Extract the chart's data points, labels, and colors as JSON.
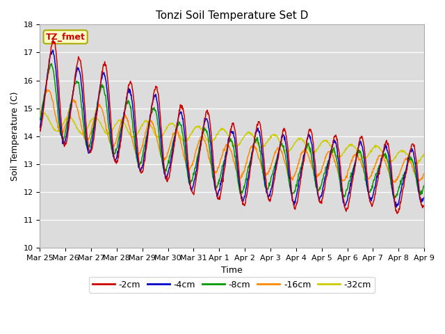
{
  "title": "Tonzi Soil Temperature Set D",
  "xlabel": "Time",
  "ylabel": "Soil Temperature (C)",
  "ylim": [
    10.0,
    18.0
  ],
  "yticks": [
    10.0,
    11.0,
    12.0,
    13.0,
    14.0,
    15.0,
    16.0,
    17.0,
    18.0
  ],
  "series_labels": [
    "-2cm",
    "-4cm",
    "-8cm",
    "-16cm",
    "-32cm"
  ],
  "series_colors": [
    "#cc0000",
    "#0000cc",
    "#009900",
    "#ff8800",
    "#cccc00"
  ],
  "legend_label": "TZ_fmet",
  "legend_box_facecolor": "#ffffcc",
  "legend_box_edgecolor": "#aaaa00",
  "legend_text_color": "#cc0000",
  "plot_bg_color": "#dcdcdc",
  "fig_bg_color": "#ffffff",
  "tick_labels": [
    "Mar 25",
    "Mar 26",
    "Mar 27",
    "Mar 28",
    "Mar 29",
    "Mar 30",
    "Mar 31",
    "Apr 1",
    "Apr 2",
    "Apr 3",
    "Apr 4",
    "Apr 5",
    "Apr 6",
    "Apr 7",
    "Apr 8",
    "Apr 9"
  ],
  "n_points": 960
}
